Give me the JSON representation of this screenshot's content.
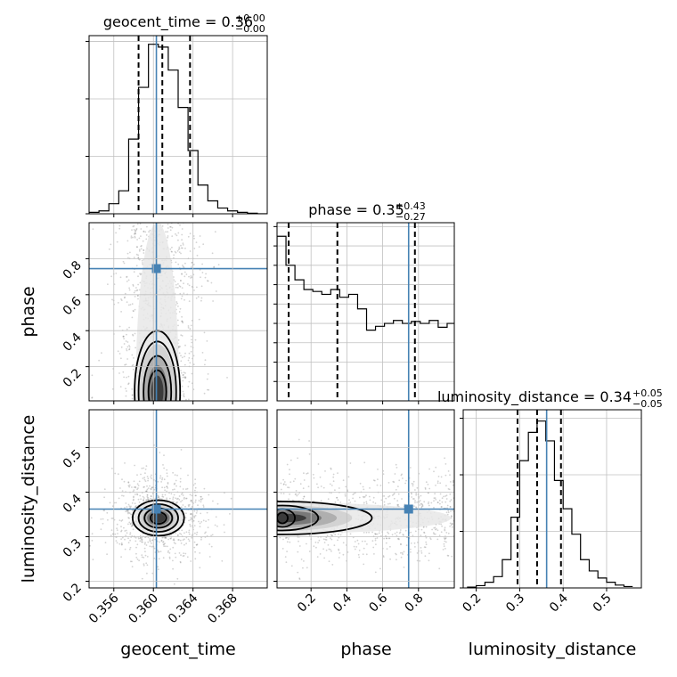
{
  "chart_data": {
    "type": "corner",
    "parameters": [
      "geocent_time",
      "phase",
      "luminosity_distance"
    ],
    "axis_labels": {
      "geocent_time": "geocent_time",
      "phase": "phase",
      "luminosity_distance": "luminosity_distance"
    },
    "truths": {
      "geocent_time": 0.3603,
      "phase": 0.745,
      "luminosity_distance": 0.362
    },
    "colors": {
      "truth": "#4682b4",
      "line": "#000000",
      "grid": "#c0c0c0",
      "scatter": "#808080"
    },
    "marginals": [
      {
        "param": "geocent_time",
        "title_text": "geocent_time = 0.36",
        "title_sup": "+0.00",
        "title_sub": "−0.00",
        "xlim": [
          0.3535,
          0.3715
        ],
        "quantiles": [
          0.3585,
          0.3609,
          0.3637
        ],
        "bin_edges": [
          0.3535,
          0.3545,
          0.3555,
          0.3565,
          0.3575,
          0.3585,
          0.3595,
          0.3605,
          0.3615,
          0.3625,
          0.3635,
          0.3645,
          0.3655,
          0.3665,
          0.3675,
          0.3685,
          0.3695,
          0.3705,
          0.3715
        ],
        "counts": [
          0.5,
          1,
          3.5,
          8,
          26,
          44,
          59,
          58,
          50,
          37,
          22,
          10,
          4.5,
          2,
          1,
          0.5,
          0.2,
          0
        ],
        "ymax": 62,
        "yticks": [
          0,
          20,
          40,
          60
        ]
      },
      {
        "param": "phase",
        "title_text": "phase = 0.35",
        "title_sup": "+0.43",
        "title_sub": "−0.27",
        "xlim": [
          0.01,
          1.0
        ],
        "quantiles": [
          0.075,
          0.347,
          0.78
        ],
        "bin_edges": [
          0.01,
          0.06,
          0.11,
          0.16,
          0.21,
          0.26,
          0.31,
          0.36,
          0.41,
          0.46,
          0.51,
          0.56,
          0.61,
          0.66,
          0.71,
          0.76,
          0.81,
          0.86,
          0.91,
          0.96,
          1.0
        ],
        "counts": [
          170,
          140,
          125,
          115,
          113,
          110,
          115,
          107,
          110,
          95,
          73,
          77,
          80,
          83,
          80,
          82,
          80,
          83,
          76,
          80
        ],
        "ymax": 184,
        "yticks": [
          20,
          40,
          60,
          80,
          100,
          120,
          140,
          160,
          180
        ]
      },
      {
        "param": "luminosity_distance",
        "title_text": "luminosity_distance = 0.34",
        "title_sup": "+0.05",
        "title_sub": "−0.05",
        "xlim": [
          0.17,
          0.58
        ],
        "quantiles": [
          0.295,
          0.34,
          0.395
        ],
        "bin_edges": [
          0.18,
          0.2,
          0.22,
          0.24,
          0.26,
          0.28,
          0.3,
          0.32,
          0.34,
          0.36,
          0.38,
          0.4,
          0.42,
          0.44,
          0.46,
          0.48,
          0.5,
          0.52,
          0.54,
          0.56
        ],
        "counts": [
          0.3,
          0.8,
          2,
          4,
          10,
          25,
          45,
          55,
          59,
          52,
          38,
          28,
          19,
          10,
          6,
          3.5,
          2,
          1,
          0.5
        ],
        "ymax": 63,
        "yticks": [
          0,
          20,
          40,
          60
        ]
      }
    ],
    "ticks": {
      "geocent_time": [
        "0.356",
        "0.360",
        "0.364",
        "0.368"
      ],
      "phase": [
        "0.2",
        "0.4",
        "0.6",
        "0.8"
      ],
      "luminosity_distance": [
        "0.2",
        "0.3",
        "0.4",
        "0.5"
      ]
    },
    "ylims": {
      "phase": [
        0.01,
        1.0
      ],
      "luminosity_distance": [
        0.185,
        0.585
      ]
    },
    "joint": [
      {
        "x": "geocent_time",
        "y": "phase",
        "center": [
          0.3606,
          0.5
        ],
        "spread": [
          0.0022,
          0.26
        ],
        "peak": [
          0.3604,
          0.06
        ],
        "contour_spread": [
          [
            0.0009,
            0.12
          ],
          [
            0.0014,
            0.2
          ],
          [
            0.0019,
            0.28
          ],
          [
            0.0023,
            0.34
          ]
        ]
      },
      {
        "x": "geocent_time",
        "y": "luminosity_distance",
        "center": [
          0.3605,
          0.345
        ],
        "spread": [
          0.0025,
          0.048
        ],
        "peak": [
          0.3605,
          0.342
        ],
        "contour_spread": [
          [
            0.0008,
            0.013
          ],
          [
            0.0014,
            0.022
          ],
          [
            0.002,
            0.031
          ],
          [
            0.0026,
            0.04
          ]
        ]
      },
      {
        "x": "phase",
        "y": "luminosity_distance",
        "center": [
          0.45,
          0.345
        ],
        "spread": [
          0.3,
          0.048
        ],
        "peak": [
          0.04,
          0.342
        ],
        "contour_spread": [
          [
            0.03,
            0.012
          ],
          [
            0.07,
            0.02
          ],
          [
            0.2,
            0.028
          ],
          [
            0.5,
            0.037
          ]
        ]
      }
    ]
  }
}
